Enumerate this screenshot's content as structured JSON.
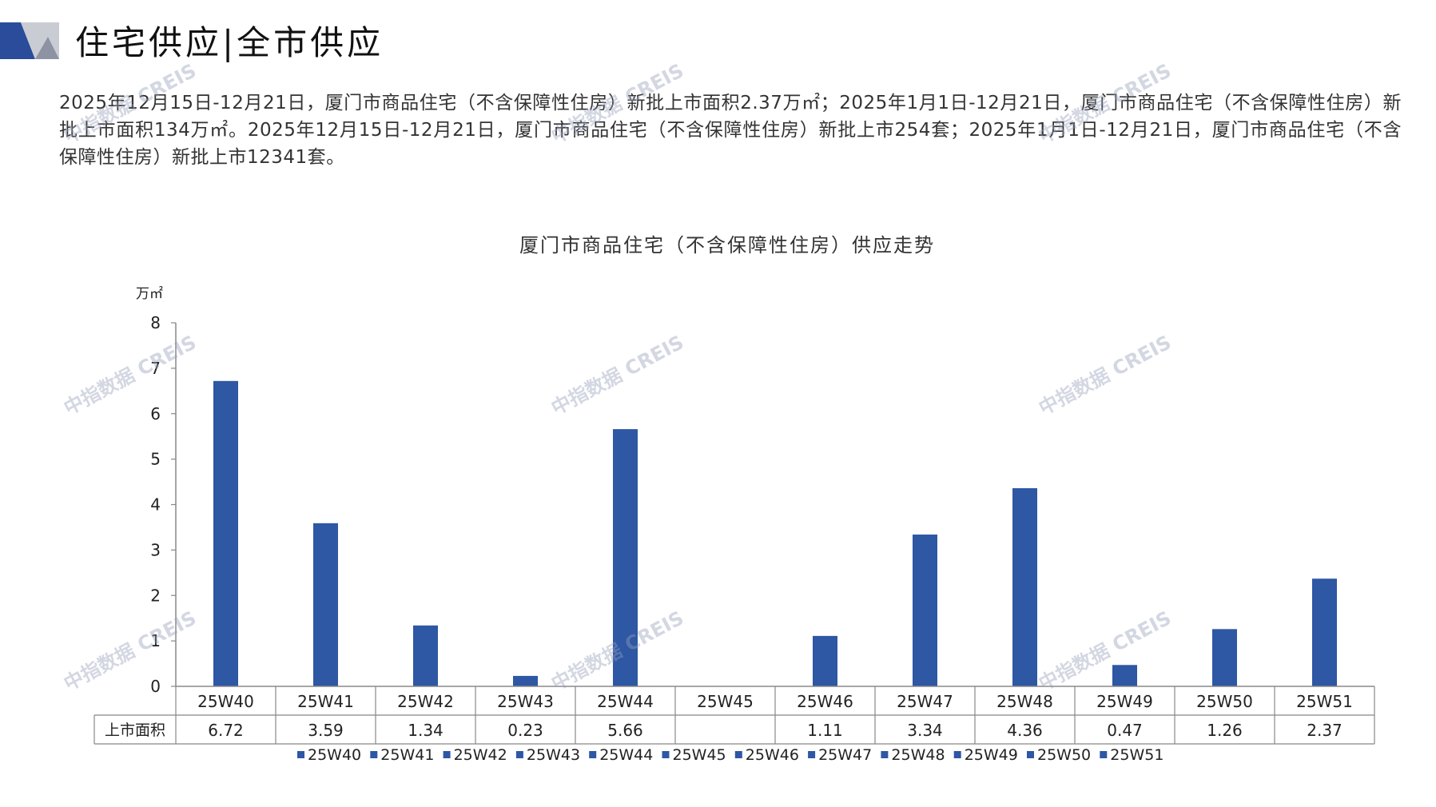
{
  "header": {
    "title": "住宅供应|全市供应"
  },
  "summary": {
    "text": "2025年12月15日-12月21日，厦门市商品住宅（不含保障性住房）新批上市面积2.37万㎡；2025年1月1日-12月21日，厦门市商品住宅（不含保障性住房）新批上市面积134万㎡。2025年12月15日-12月21日，厦门市商品住宅（不含保障性住房）新批上市254套；2025年1月1日-12月21日，厦门市商品住宅（不含保障性住房）新批上市12341套。"
  },
  "watermark": "中指数据 CREIS",
  "colors": {
    "bar": "#2E57A4",
    "axis": "#888888",
    "logo_dark": "#2B4C9B",
    "logo_light": "#C9CCD3"
  },
  "chart_data": {
    "type": "bar",
    "title": "厦门市商品住宅（不含保障性住房）供应走势",
    "ylabel": "万㎡",
    "ylim": [
      0,
      8
    ],
    "yticks": [
      0,
      1,
      2,
      3,
      4,
      5,
      6,
      7,
      8
    ],
    "categories": [
      "25W40",
      "25W41",
      "25W42",
      "25W43",
      "25W44",
      "25W45",
      "25W46",
      "25W47",
      "25W48",
      "25W49",
      "25W50",
      "25W51"
    ],
    "series": [
      {
        "name": "上市面积",
        "values": [
          6.72,
          3.59,
          1.34,
          0.23,
          5.66,
          null,
          1.11,
          3.34,
          4.36,
          0.47,
          1.26,
          2.37
        ],
        "labels": [
          "6.72",
          "3.59",
          "1.34",
          "0.23",
          "5.66",
          "",
          "1.11",
          "3.34",
          "4.36",
          "0.47",
          "1.26",
          "2.37"
        ]
      }
    ],
    "legend": [
      "25W40",
      "25W41",
      "25W42",
      "25W43",
      "25W44",
      "25W45",
      "25W46",
      "25W47",
      "25W48",
      "25W49",
      "25W50",
      "25W51"
    ],
    "legend_position": "bottom",
    "data_table": true
  }
}
